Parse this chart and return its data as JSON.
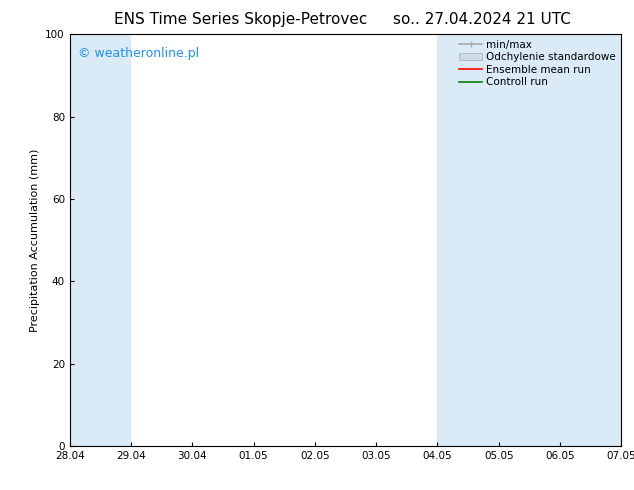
{
  "title_left": "ENS Time Series Skopje-Petrovec",
  "title_right": "so.. 27.04.2024 21 UTC",
  "ylabel": "Precipitation Accumulation (mm)",
  "ylim": [
    0,
    100
  ],
  "yticks": [
    0,
    20,
    40,
    60,
    80,
    100
  ],
  "x_start": 0,
  "x_end": 9,
  "xtick_labels": [
    "28.04",
    "29.04",
    "30.04",
    "01.05",
    "02.05",
    "03.05",
    "04.05",
    "05.05",
    "06.05",
    "07.05"
  ],
  "xtick_positions": [
    0,
    1,
    2,
    3,
    4,
    5,
    6,
    7,
    8,
    9
  ],
  "background_color": "#ffffff",
  "plot_bg_color": "#ffffff",
  "shaded_regions": [
    {
      "x_start": 0.0,
      "x_end": 1.0,
      "color": "#daeaf7"
    },
    {
      "x_start": 6.0,
      "x_end": 8.0,
      "color": "#daeaf7"
    },
    {
      "x_start": 8.0,
      "x_end": 9.0,
      "color": "#daeaf7"
    }
  ],
  "legend_entries": [
    {
      "label": "min/max",
      "color": "#aaaaaa",
      "lw": 1.2
    },
    {
      "label": "Odchylenie standardowe",
      "color": "#ccdde8",
      "lw": 8
    },
    {
      "label": "Ensemble mean run",
      "color": "#ff0000",
      "lw": 1.2
    },
    {
      "label": "Controll run",
      "color": "#008000",
      "lw": 1.2
    }
  ],
  "watermark_text": "© weatheronline.pl",
  "watermark_color": "#1e90ff",
  "watermark_fontsize": 9,
  "title_fontsize": 11,
  "axis_label_fontsize": 8,
  "tick_fontsize": 7.5,
  "legend_fontsize": 7.5
}
